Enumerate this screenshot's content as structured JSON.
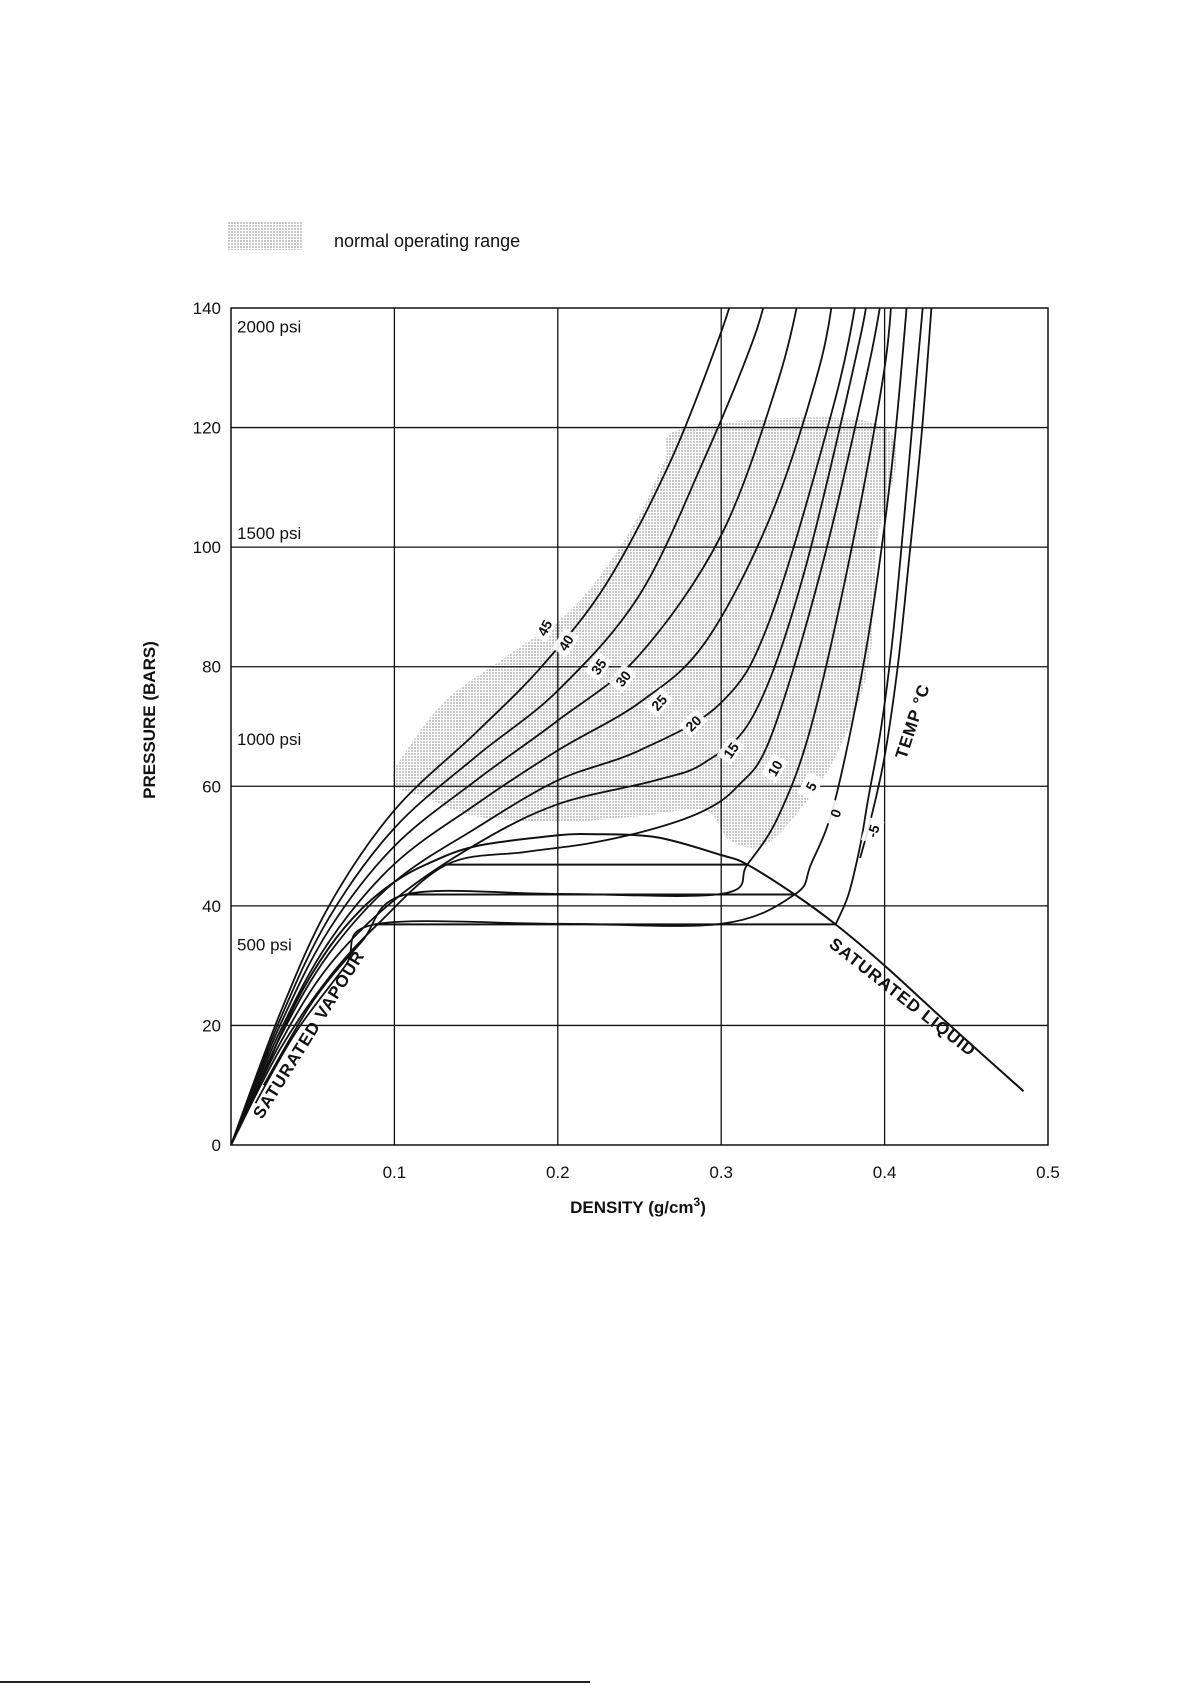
{
  "legend": {
    "label": "normal operating range",
    "fill": "#c8c8c8"
  },
  "chart_data": {
    "type": "line",
    "title": "",
    "xlabel": "DENSITY (g/cm",
    "xlabel_sup": "3",
    "xlabel_close": ")",
    "ylabel": "PRESSURE (BARS)",
    "xlim": [
      0,
      0.5
    ],
    "ylim": [
      0,
      140
    ],
    "x_ticks": [
      "0.1",
      "0.2",
      "0.3",
      "0.4",
      "0.5"
    ],
    "y_ticks": [
      "0",
      "20",
      "40",
      "60",
      "80",
      "100",
      "120",
      "140"
    ],
    "grid": true,
    "psi_labels": [
      {
        "text": "2000 psi",
        "pressure": 137.9
      },
      {
        "text": "1500 psi",
        "pressure": 103.4
      },
      {
        "text": "1000 psi",
        "pressure": 68.9
      },
      {
        "text": "500 psi",
        "pressure": 34.5
      }
    ],
    "annotations": {
      "saturated_vapour": "SATURATED VAPOUR",
      "saturated_liquid": "SATURATED LIQUID",
      "temp": "TEMP °C"
    },
    "saturation_dome": {
      "vapour": [
        [
          0.0,
          0.0
        ],
        [
          0.02,
          12
        ],
        [
          0.04,
          24
        ],
        [
          0.06,
          33
        ],
        [
          0.08,
          39.5
        ],
        [
          0.1,
          44
        ],
        [
          0.12,
          47
        ],
        [
          0.15,
          50
        ],
        [
          0.2,
          51.8
        ],
        [
          0.22,
          52
        ]
      ],
      "liquid": [
        [
          0.22,
          52
        ],
        [
          0.26,
          51.5
        ],
        [
          0.3,
          48.5
        ],
        [
          0.316,
          46.9
        ],
        [
          0.345,
          41.9
        ],
        [
          0.37,
          36.9
        ],
        [
          0.4,
          30
        ],
        [
          0.44,
          20
        ],
        [
          0.485,
          9
        ]
      ]
    },
    "tie_lines": [
      {
        "pressure": 46.9,
        "x": [
          0.132,
          0.316
        ]
      },
      {
        "pressure": 41.9,
        "x": [
          0.107,
          0.345
        ]
      },
      {
        "pressure": 36.9,
        "x": [
          0.088,
          0.37
        ]
      }
    ],
    "series": [
      {
        "name": "45",
        "points": [
          [
            0.0,
            0.0
          ],
          [
            0.03,
            22
          ],
          [
            0.06,
            40
          ],
          [
            0.1,
            56
          ],
          [
            0.15,
            69
          ],
          [
            0.19,
            80
          ],
          [
            0.23,
            94
          ],
          [
            0.27,
            115
          ],
          [
            0.3,
            136
          ],
          [
            0.31,
            145
          ]
        ]
      },
      {
        "name": "40",
        "points": [
          [
            0.0,
            0.0
          ],
          [
            0.03,
            21
          ],
          [
            0.06,
            38
          ],
          [
            0.1,
            53
          ],
          [
            0.15,
            65
          ],
          [
            0.2,
            76
          ],
          [
            0.25,
            92
          ],
          [
            0.29,
            115
          ],
          [
            0.32,
            135
          ],
          [
            0.33,
            145
          ]
        ]
      },
      {
        "name": "35",
        "points": [
          [
            0.0,
            0.0
          ],
          [
            0.03,
            20
          ],
          [
            0.06,
            36
          ],
          [
            0.1,
            50
          ],
          [
            0.15,
            61
          ],
          [
            0.2,
            71
          ],
          [
            0.25,
            82
          ],
          [
            0.3,
            102
          ],
          [
            0.335,
            128
          ],
          [
            0.35,
            145
          ]
        ]
      },
      {
        "name": "30",
        "points": [
          [
            0.0,
            0.0
          ],
          [
            0.03,
            19
          ],
          [
            0.06,
            34
          ],
          [
            0.1,
            47
          ],
          [
            0.15,
            57
          ],
          [
            0.2,
            66
          ],
          [
            0.25,
            74
          ],
          [
            0.29,
            84
          ],
          [
            0.33,
            105
          ],
          [
            0.36,
            130
          ],
          [
            0.37,
            145
          ]
        ]
      },
      {
        "name": "25",
        "points": [
          [
            0.0,
            0.0
          ],
          [
            0.03,
            18
          ],
          [
            0.06,
            32
          ],
          [
            0.1,
            44
          ],
          [
            0.15,
            53
          ],
          [
            0.2,
            61
          ],
          [
            0.25,
            66
          ],
          [
            0.3,
            74
          ],
          [
            0.33,
            88
          ],
          [
            0.37,
            125
          ],
          [
            0.385,
            145
          ]
        ]
      },
      {
        "name": "20",
        "points": [
          [
            0.0,
            0.0
          ],
          [
            0.03,
            17
          ],
          [
            0.06,
            30
          ],
          [
            0.1,
            41
          ],
          [
            0.15,
            50.3
          ],
          [
            0.2,
            57
          ],
          [
            0.26,
            61
          ],
          [
            0.29,
            64
          ],
          [
            0.32,
            72
          ],
          [
            0.35,
            95
          ],
          [
            0.385,
            135
          ],
          [
            0.39,
            145
          ]
        ]
      },
      {
        "name": "15",
        "points": [
          [
            0.0,
            0.0
          ],
          [
            0.03,
            16
          ],
          [
            0.06,
            28
          ],
          [
            0.09,
            37
          ],
          [
            0.132,
            46.9
          ],
          [
            0.18,
            49
          ],
          [
            0.22,
            50.5
          ],
          [
            0.26,
            53
          ],
          [
            0.29,
            56
          ],
          [
            0.31,
            60
          ],
          [
            0.33,
            68
          ],
          [
            0.36,
            95
          ],
          [
            0.39,
            130
          ],
          [
            0.4,
            145
          ]
        ]
      },
      {
        "name": "10",
        "points": [
          [
            0.02,
            10
          ],
          [
            0.05,
            24
          ],
          [
            0.08,
            34
          ],
          [
            0.107,
            41.9
          ],
          [
            0.2,
            42
          ],
          [
            0.3,
            42
          ],
          [
            0.316,
            46.9
          ],
          [
            0.335,
            55
          ],
          [
            0.355,
            70
          ],
          [
            0.38,
            100
          ],
          [
            0.4,
            130
          ],
          [
            0.405,
            145
          ]
        ]
      },
      {
        "name": "5",
        "points": [
          [
            0.015,
            7
          ],
          [
            0.04,
            19
          ],
          [
            0.07,
            30
          ],
          [
            0.088,
            36.9
          ],
          [
            0.2,
            37
          ],
          [
            0.3,
            37
          ],
          [
            0.345,
            41.9
          ],
          [
            0.355,
            47
          ],
          [
            0.37,
            58
          ],
          [
            0.39,
            85
          ],
          [
            0.405,
            115
          ],
          [
            0.415,
            145
          ]
        ]
      },
      {
        "name": "0",
        "points": [
          [
            0.37,
            36.9
          ],
          [
            0.378,
            42
          ],
          [
            0.385,
            50
          ],
          [
            0.39,
            58
          ],
          [
            0.398,
            70
          ],
          [
            0.405,
            85
          ],
          [
            0.412,
            105
          ],
          [
            0.42,
            130
          ],
          [
            0.425,
            145
          ]
        ]
      },
      {
        "name": "-5",
        "points": [
          [
            0.385,
            48
          ],
          [
            0.392,
            55
          ],
          [
            0.4,
            65
          ],
          [
            0.408,
            80
          ],
          [
            0.415,
            98
          ],
          [
            0.423,
            120
          ],
          [
            0.43,
            145
          ]
        ]
      }
    ],
    "iso_label_positions": [
      {
        "name": "45",
        "x": 0.192,
        "y": 86.5,
        "angle": -62
      },
      {
        "name": "40",
        "x": 0.205,
        "y": 84,
        "angle": -58
      },
      {
        "name": "35",
        "x": 0.225,
        "y": 80,
        "angle": -55
      },
      {
        "name": "30",
        "x": 0.24,
        "y": 78,
        "angle": -52
      },
      {
        "name": "25",
        "x": 0.262,
        "y": 74,
        "angle": -48
      },
      {
        "name": "20",
        "x": 0.283,
        "y": 70.5,
        "angle": -45
      },
      {
        "name": "15",
        "x": 0.306,
        "y": 66,
        "angle": -55
      },
      {
        "name": "10",
        "x": 0.333,
        "y": 63,
        "angle": -60
      },
      {
        "name": "5",
        "x": 0.355,
        "y": 60,
        "angle": -62
      },
      {
        "name": "0",
        "x": 0.37,
        "y": 55.5,
        "angle": -70
      },
      {
        "name": "-5",
        "x": 0.393,
        "y": 52.5,
        "angle": -72
      }
    ],
    "operating_range": [
      [
        0.1,
        63
      ],
      [
        0.13,
        74
      ],
      [
        0.17,
        82
      ],
      [
        0.21,
        90
      ],
      [
        0.245,
        103
      ],
      [
        0.265,
        114
      ],
      [
        0.28,
        120
      ],
      [
        0.4,
        120
      ],
      [
        0.395,
        100
      ],
      [
        0.39,
        80
      ],
      [
        0.37,
        65
      ],
      [
        0.345,
        55
      ],
      [
        0.325,
        50
      ],
      [
        0.305,
        51
      ],
      [
        0.29,
        56
      ],
      [
        0.25,
        55
      ],
      [
        0.2,
        54
      ],
      [
        0.15,
        55
      ],
      [
        0.12,
        58
      ],
      [
        0.1,
        60
      ]
    ]
  }
}
